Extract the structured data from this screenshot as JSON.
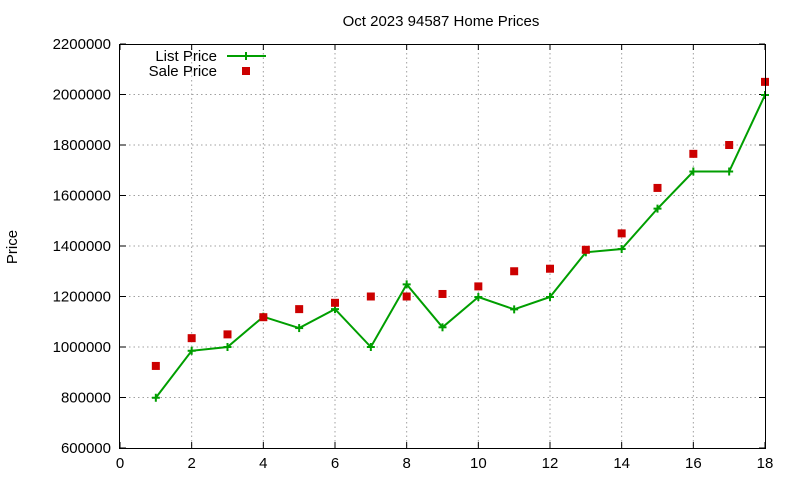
{
  "chart_data": {
    "type": "line",
    "title": "Oct 2023 94587 Home Prices",
    "xlabel": "",
    "ylabel": "Price",
    "xlim": [
      0,
      18
    ],
    "ylim": [
      600000,
      2200000
    ],
    "x_ticks": [
      0,
      2,
      4,
      6,
      8,
      10,
      12,
      14,
      16,
      18
    ],
    "y_ticks": [
      600000,
      800000,
      1000000,
      1200000,
      1400000,
      1600000,
      1800000,
      2000000,
      2200000
    ],
    "x_tick_labels": [
      "0",
      "2",
      "4",
      "6",
      "8",
      "10",
      "12",
      "14",
      "16",
      "18"
    ],
    "y_tick_labels": [
      "600000",
      "800000",
      "1000000",
      "1200000",
      "1400000",
      "1600000",
      "1800000",
      "2000000",
      "2200000"
    ],
    "grid": true,
    "legend_position": "top-left",
    "x": [
      1,
      2,
      3,
      4,
      5,
      6,
      7,
      8,
      9,
      10,
      11,
      12,
      13,
      14,
      15,
      16,
      17,
      18
    ],
    "series": [
      {
        "name": "List Price",
        "style": "lines+points",
        "marker": "plus",
        "color": "#009e00",
        "values": [
          799000,
          985000,
          1000000,
          1120000,
          1075000,
          1150000,
          1000000,
          1248000,
          1078000,
          1198000,
          1149000,
          1198000,
          1375000,
          1388000,
          1548000,
          1695000,
          1695000,
          1998000
        ]
      },
      {
        "name": "Sale Price",
        "style": "points",
        "marker": "square",
        "color": "#cc0000",
        "values": [
          925000,
          1035000,
          1050000,
          1118000,
          1150000,
          1175000,
          1200000,
          1200000,
          1210000,
          1240000,
          1300000,
          1310000,
          1385000,
          1450000,
          1630000,
          1765000,
          1800000,
          2050000
        ]
      }
    ]
  }
}
